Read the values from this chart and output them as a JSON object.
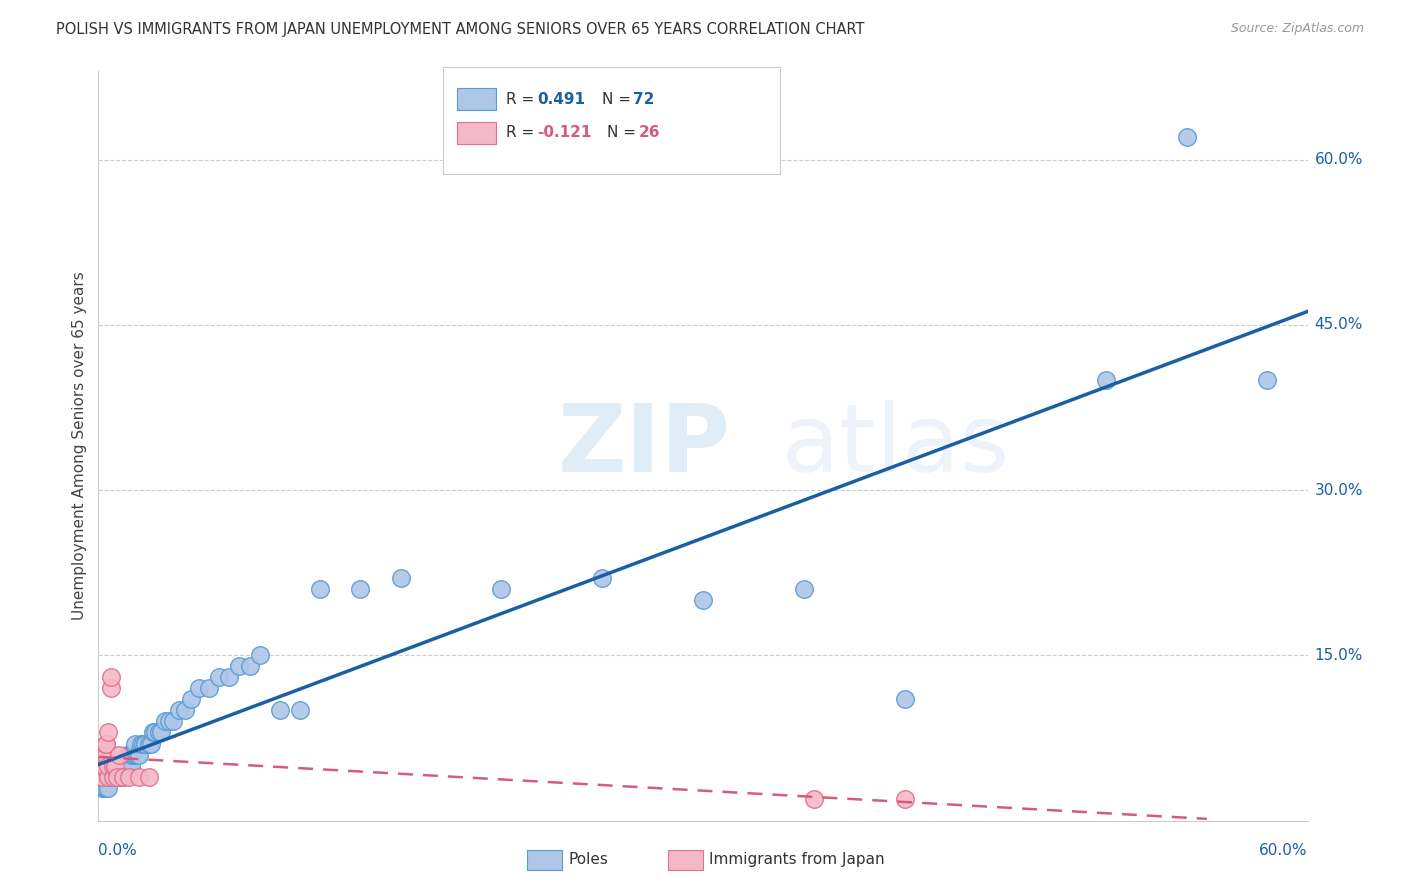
{
  "title": "POLISH VS IMMIGRANTS FROM JAPAN UNEMPLOYMENT AMONG SENIORS OVER 65 YEARS CORRELATION CHART",
  "source": "Source: ZipAtlas.com",
  "ylabel": "Unemployment Among Seniors over 65 years",
  "watermark_zip": "ZIP",
  "watermark_atlas": "atlas",
  "xlim": [
    0.0,
    0.6
  ],
  "ylim": [
    0.0,
    0.68
  ],
  "ytick_values": [
    0.15,
    0.3,
    0.45,
    0.6
  ],
  "xtick_values": [
    0.0,
    0.6
  ],
  "poles_color": "#aec6e8",
  "poles_edge_color": "#5b9bd5",
  "japan_color": "#f4b8c8",
  "japan_edge_color": "#e07090",
  "trend_poles_color": "#1a5fa6",
  "trend_japan_color": "#d45c7a",
  "R_poles": 0.491,
  "N_poles": 72,
  "R_japan": -0.121,
  "N_japan": 26,
  "poles_x": [
    0.002,
    0.003,
    0.004,
    0.004,
    0.005,
    0.005,
    0.005,
    0.006,
    0.006,
    0.007,
    0.007,
    0.008,
    0.008,
    0.009,
    0.009,
    0.01,
    0.01,
    0.01,
    0.01,
    0.01,
    0.011,
    0.011,
    0.012,
    0.012,
    0.013,
    0.013,
    0.014,
    0.014,
    0.015,
    0.015,
    0.016,
    0.016,
    0.017,
    0.018,
    0.018,
    0.019,
    0.02,
    0.021,
    0.022,
    0.023,
    0.025,
    0.026,
    0.027,
    0.028,
    0.03,
    0.031,
    0.033,
    0.035,
    0.037,
    0.04,
    0.043,
    0.046,
    0.05,
    0.055,
    0.06,
    0.065,
    0.07,
    0.075,
    0.08,
    0.09,
    0.1,
    0.11,
    0.13,
    0.15,
    0.2,
    0.25,
    0.3,
    0.35,
    0.4,
    0.5,
    0.54,
    0.58
  ],
  "poles_y": [
    0.03,
    0.03,
    0.03,
    0.04,
    0.03,
    0.04,
    0.04,
    0.04,
    0.04,
    0.04,
    0.04,
    0.04,
    0.04,
    0.04,
    0.05,
    0.04,
    0.04,
    0.04,
    0.05,
    0.05,
    0.04,
    0.05,
    0.04,
    0.05,
    0.05,
    0.05,
    0.05,
    0.06,
    0.05,
    0.06,
    0.05,
    0.06,
    0.06,
    0.06,
    0.07,
    0.06,
    0.06,
    0.07,
    0.07,
    0.07,
    0.07,
    0.07,
    0.08,
    0.08,
    0.08,
    0.08,
    0.09,
    0.09,
    0.09,
    0.1,
    0.1,
    0.11,
    0.12,
    0.12,
    0.13,
    0.13,
    0.14,
    0.14,
    0.15,
    0.1,
    0.1,
    0.21,
    0.21,
    0.22,
    0.21,
    0.22,
    0.2,
    0.21,
    0.11,
    0.4,
    0.62,
    0.4
  ],
  "japan_x": [
    0.001,
    0.002,
    0.002,
    0.002,
    0.003,
    0.003,
    0.003,
    0.004,
    0.004,
    0.004,
    0.005,
    0.005,
    0.005,
    0.006,
    0.006,
    0.007,
    0.007,
    0.008,
    0.009,
    0.01,
    0.012,
    0.015,
    0.02,
    0.025,
    0.355,
    0.4
  ],
  "japan_y": [
    0.04,
    0.04,
    0.05,
    0.05,
    0.05,
    0.06,
    0.06,
    0.06,
    0.07,
    0.07,
    0.04,
    0.05,
    0.08,
    0.12,
    0.13,
    0.04,
    0.05,
    0.05,
    0.04,
    0.06,
    0.04,
    0.04,
    0.04,
    0.04,
    0.02,
    0.02
  ],
  "grid_color": "#cccccc",
  "grid_linestyle": "--",
  "spine_color": "#cccccc"
}
